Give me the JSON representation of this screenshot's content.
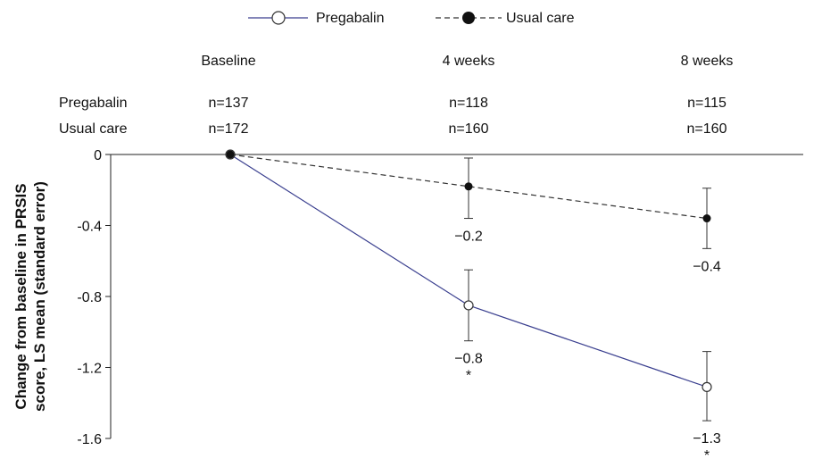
{
  "chart_data": {
    "type": "line",
    "ylabel": [
      "Change from baseline in PRSIS",
      "score, LS mean (standard error)"
    ],
    "ylim": [
      -1.6,
      0
    ],
    "yticks": [
      0,
      -0.4,
      -0.8,
      -1.2,
      -1.6
    ],
    "ytick_labels": [
      "0",
      "-0.4",
      "-0.8",
      "-1.2",
      "-1.6"
    ],
    "categories": [
      "Baseline",
      "4 weeks",
      "8 weeks"
    ],
    "legend_position": "top-center",
    "n_table": [
      {
        "label": "Pregabalin",
        "values": [
          "n=137",
          "n=118",
          "n=115"
        ]
      },
      {
        "label": "Usual care",
        "values": [
          "n=172",
          "n=160",
          "n=160"
        ]
      }
    ],
    "series": [
      {
        "name": "Pregabalin",
        "color": "#3a3f8f",
        "marker": "open-circle",
        "line_style": "solid",
        "values": [
          0,
          -0.85,
          -1.31
        ],
        "err_low": [
          0,
          -1.05,
          -1.5
        ],
        "err_high": [
          0,
          -0.65,
          -1.11
        ],
        "value_labels": [
          "",
          "−0.8",
          "−1.3"
        ],
        "significance": [
          "",
          "*",
          "*"
        ]
      },
      {
        "name": "Usual care",
        "color": "#333333",
        "marker": "filled-circle",
        "line_style": "dashed",
        "values": [
          0,
          -0.18,
          -0.36
        ],
        "err_low": [
          0,
          -0.36,
          -0.53
        ],
        "err_high": [
          0,
          -0.02,
          -0.19
        ],
        "value_labels": [
          "",
          "−0.2",
          "−0.4"
        ],
        "significance": [
          "",
          "",
          ""
        ]
      }
    ]
  }
}
